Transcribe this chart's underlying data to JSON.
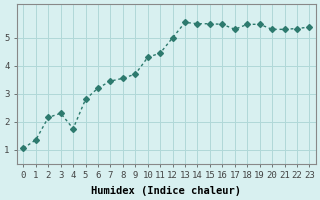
{
  "x": [
    0,
    1,
    2,
    3,
    4,
    5,
    6,
    7,
    8,
    9,
    10,
    11,
    12,
    13,
    14,
    15,
    16,
    17,
    18,
    19,
    20,
    21,
    22,
    23
  ],
  "y": [
    1.05,
    1.35,
    2.15,
    2.3,
    1.75,
    2.8,
    3.2,
    3.45,
    3.55,
    3.7,
    4.3,
    4.45,
    5.0,
    5.55,
    5.5,
    5.5,
    5.48,
    5.3,
    5.48,
    5.48,
    5.3,
    5.3,
    5.33,
    5.38
  ],
  "line_color": "#2d7a6e",
  "marker": "D",
  "marker_size": 3,
  "bg_color": "#d8f0f0",
  "grid_color": "#b0d8d8",
  "xlabel": "Humidex (Indice chaleur)",
  "ylabel": "",
  "title": "",
  "xlim": [
    -0.5,
    23.5
  ],
  "ylim": [
    0.5,
    6.2
  ],
  "xtick_labels": [
    "0",
    "1",
    "2",
    "3",
    "4",
    "5",
    "6",
    "7",
    "8",
    "9",
    "10",
    "11",
    "12",
    "13",
    "14",
    "15",
    "16",
    "17",
    "18",
    "19",
    "20",
    "21",
    "22",
    "23"
  ],
  "ytick_values": [
    1,
    2,
    3,
    4,
    5
  ],
  "xlabel_fontsize": 7.5,
  "tick_fontsize": 6.5,
  "line_width": 1.0
}
